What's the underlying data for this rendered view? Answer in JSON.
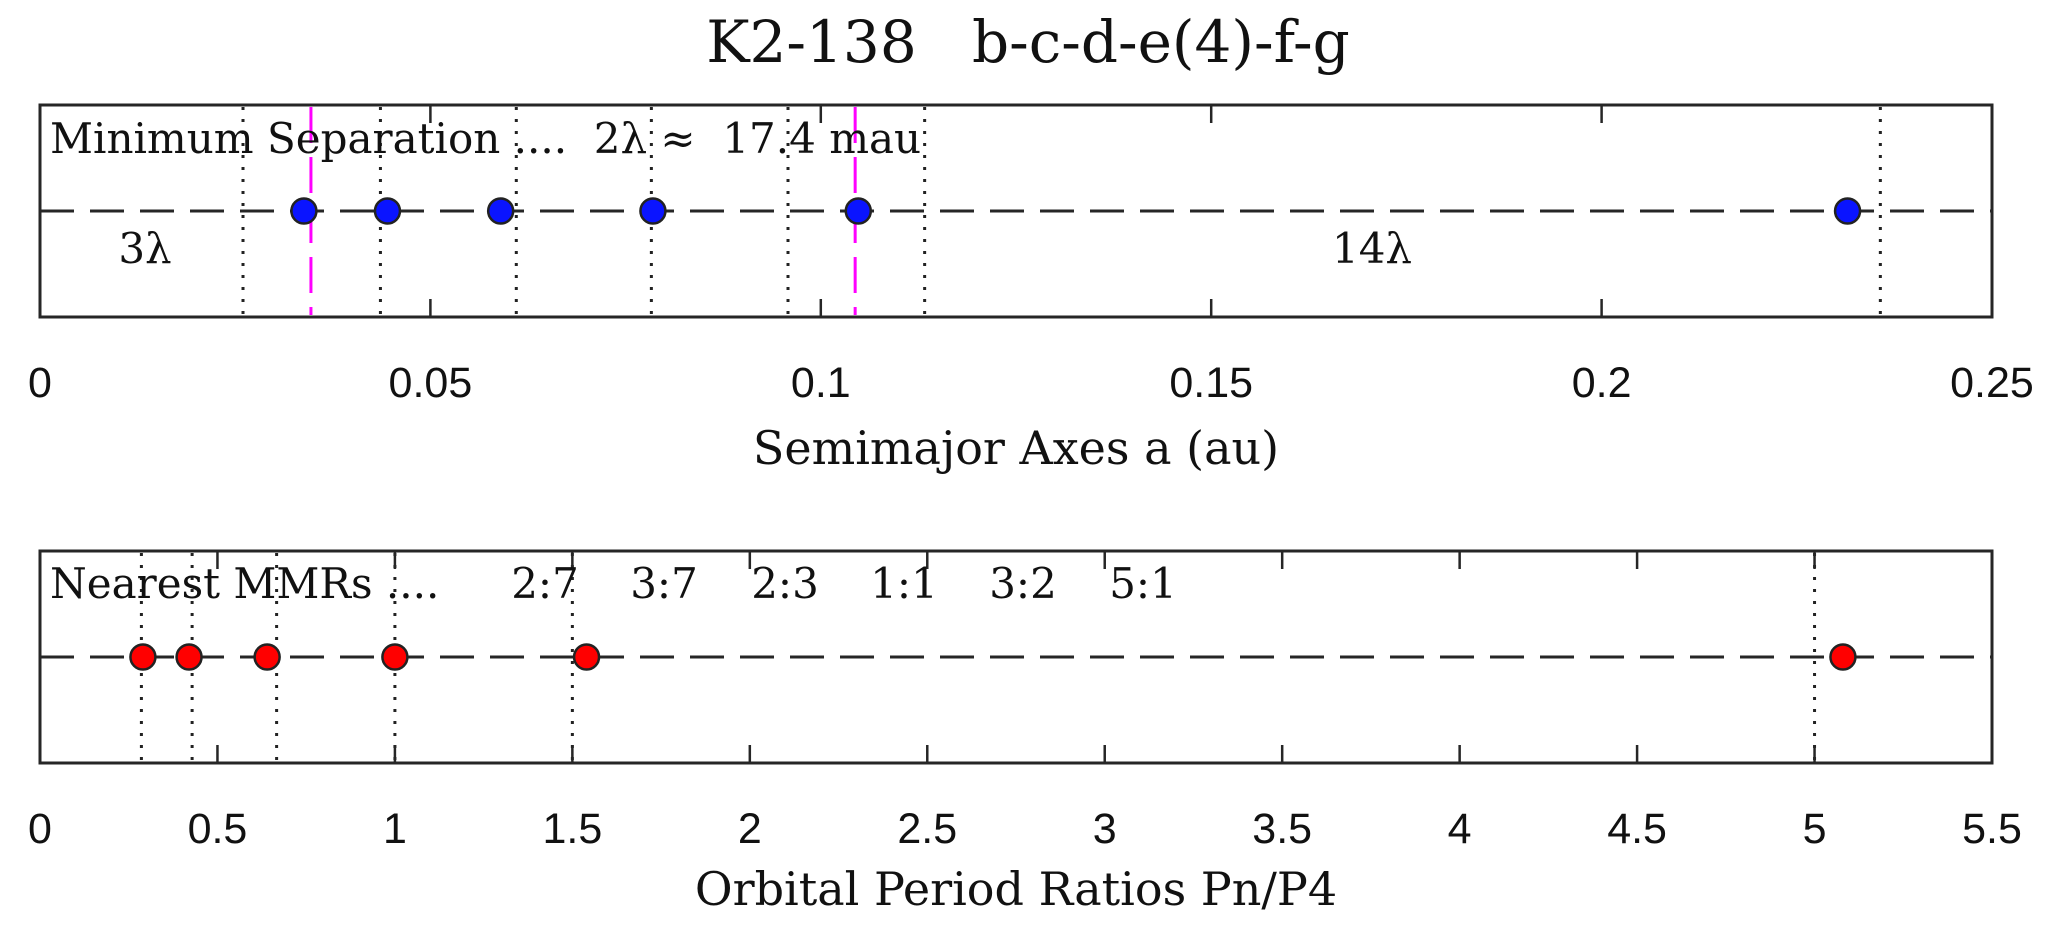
{
  "figure": {
    "title": "K2-138   b-c-d-e(4)-f-g"
  },
  "chart_data": [
    {
      "type": "scatter",
      "xlabel": "Semimajor Axes a (au)",
      "ylabel": "",
      "xlim": [
        0,
        0.25
      ],
      "xticks": [
        0,
        0.05,
        0.1,
        0.15,
        0.2,
        0.25
      ],
      "xtick_labels": [
        "0",
        "0.05",
        "0.1",
        "0.15",
        "0.2",
        "0.25"
      ],
      "grid": false,
      "series": [
        {
          "x": [
            0.0338,
            0.0445,
            0.059,
            0.0785,
            0.1048,
            0.2315
          ],
          "color": "#0a14ff"
        }
      ],
      "dotted_lines": [
        0.026,
        0.0436,
        0.061,
        0.0783,
        0.0958,
        0.1133,
        0.2357
      ],
      "magenta_dashed_lines": [
        0.0347,
        0.1044
      ],
      "annotations": [
        "Minimum Separation ....  2λ ≈  17.4 mau",
        "3λ",
        "14λ"
      ]
    },
    {
      "type": "scatter",
      "xlabel": "Orbital Period Ratios Pn/P4",
      "ylabel": "",
      "xlim": [
        0,
        5.5
      ],
      "xticks": [
        0,
        0.5,
        1,
        1.5,
        2,
        2.5,
        3,
        3.5,
        4,
        4.5,
        5,
        5.5
      ],
      "xtick_labels": [
        "0",
        "0.5",
        "1",
        "1.5",
        "2",
        "2.5",
        "3",
        "3.5",
        "4",
        "4.5",
        "5",
        "5.5"
      ],
      "grid": false,
      "series": [
        {
          "x": [
            0.29,
            0.42,
            0.64,
            1.0,
            1.54,
            5.08
          ],
          "color": "#ff0000"
        }
      ],
      "dotted_lines": [
        0.2857,
        0.4286,
        0.6667,
        1.0,
        1.5,
        5.0
      ],
      "annotations": [
        "Nearest MMRs ....",
        "2:7",
        "3:7",
        "2:3",
        "1:1",
        "3:2",
        "5:1"
      ]
    }
  ]
}
